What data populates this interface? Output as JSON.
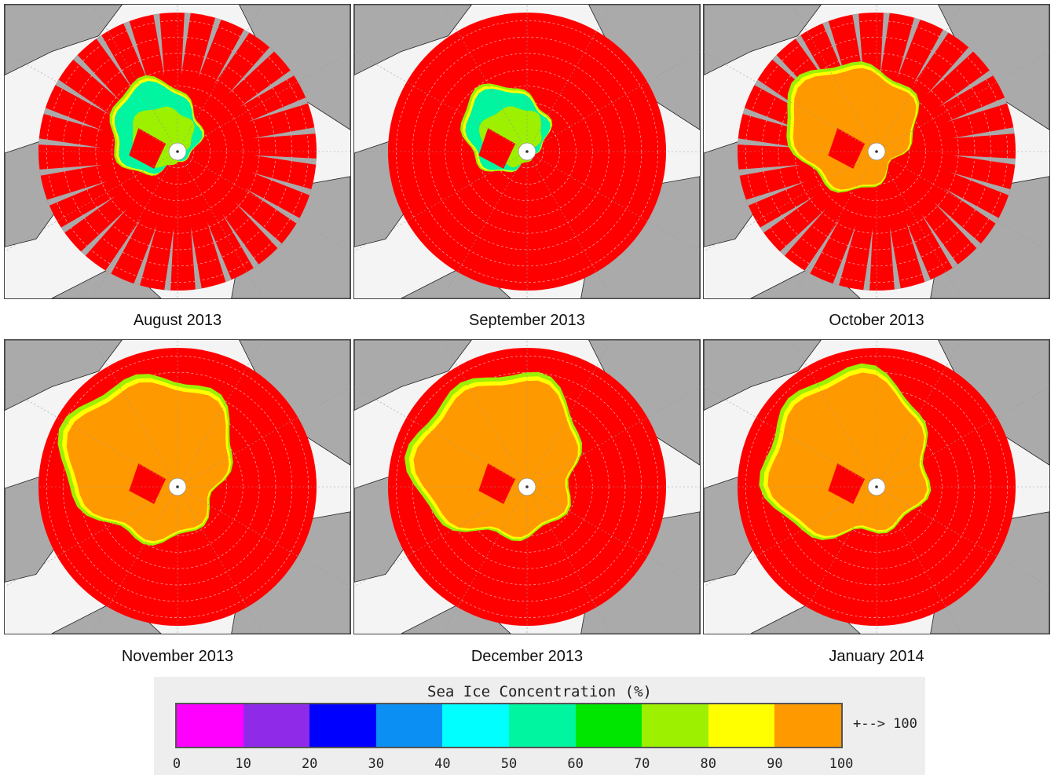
{
  "panels": [
    {
      "caption": "August 2013",
      "ice_extent": "low",
      "swath_gaps": true
    },
    {
      "caption": "September 2013",
      "ice_extent": "minimum",
      "swath_gaps": false
    },
    {
      "caption": "October 2013",
      "ice_extent": "growing",
      "swath_gaps": true
    },
    {
      "caption": "November 2013",
      "ice_extent": "high",
      "swath_gaps": false
    },
    {
      "caption": "December 2013",
      "ice_extent": "high",
      "swath_gaps": false
    },
    {
      "caption": "January 2014",
      "ice_extent": "high",
      "swath_gaps": false
    }
  ],
  "legend": {
    "title": "Sea Ice Concentration (%)",
    "over_label": "+--> 100",
    "ticks": [
      "0",
      "10",
      "20",
      "30",
      "40",
      "50",
      "60",
      "70",
      "80",
      "90",
      "100"
    ],
    "colors": [
      "#ff00ff",
      "#8f2be8",
      "#0000ff",
      "#0b8ff2",
      "#00ffff",
      "#00f5a0",
      "#00e600",
      "#9cf000",
      "#ffff00",
      "#ff9900"
    ]
  },
  "colors": {
    "ocean_open": "#ff0000",
    "ice_full": "#ff9900",
    "land": "#aaaaaa",
    "background": "#f4f4f4",
    "coast": "#222222"
  }
}
